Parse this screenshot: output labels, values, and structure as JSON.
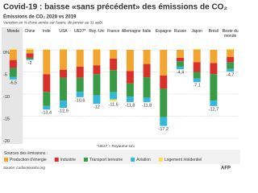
{
  "chart_data": {
    "type": "bar",
    "title": "Covid-19 : baisse «sans précédent» des émissions de CO₂",
    "subtitle": "Émissions de CO₂ 2020 vs 2019",
    "note": "Variation en % d'une année sur l'autre, de janvier au 31 août",
    "footnote": "*UE27 + Royaume-Uni",
    "legend_title": "Sources des émissions :",
    "source": "Source: carbonmonitor.org",
    "logo": "AFP",
    "stacked": true,
    "grid": true,
    "categories": [
      "Monde",
      "Chine",
      "Inde",
      "USA",
      "UE27*",
      "Roy.-Uni",
      "France",
      "Allemagne",
      "Italie",
      "Espagne",
      "Russie",
      "Japon",
      "Brésil",
      "Reste du monde"
    ],
    "series": [
      {
        "name": "Production d'énergie",
        "color": "#f3a531",
        "values": [
          -2.3,
          -0.8,
          -5.5,
          -4.5,
          -3.8,
          -3.5,
          -2.0,
          -4.8,
          -3.2,
          -5.8,
          -1.8,
          -2.8,
          -3.0,
          -1.6
        ]
      },
      {
        "name": "Industrie",
        "color": "#d8312b",
        "values": [
          -1.8,
          -1.0,
          -4.0,
          -1.8,
          -2.5,
          -2.0,
          -2.6,
          -2.8,
          -3.0,
          -3.0,
          -0.8,
          -2.2,
          -2.5,
          -1.2
        ]
      },
      {
        "name": "Transport terrestre",
        "color": "#3a9b47",
        "values": [
          -2.0,
          -0.3,
          -3.2,
          -5.2,
          -3.2,
          -4.8,
          -5.0,
          -3.0,
          -4.6,
          -6.4,
          -1.2,
          -1.5,
          -6.0,
          -1.5
        ]
      },
      {
        "name": "Aviation",
        "color": "#35b6dc",
        "values": [
          -0.6,
          -0.2,
          -0.8,
          -1.6,
          -1.2,
          -1.9,
          -1.6,
          -1.2,
          -1.0,
          -2.0,
          -0.6,
          -0.8,
          -1.2,
          -0.6
        ]
      },
      {
        "name": "Logement résidentiel",
        "color": "#f1e34c",
        "values": [
          0.2,
          0.3,
          0.1,
          0.2,
          0.1,
          0.2,
          -0.4,
          0,
          0,
          0,
          0,
          0.2,
          0,
          0.2
        ]
      }
    ],
    "totals": {
      "values": [
        -6.5,
        -2,
        -13.4,
        -12.9,
        -10.6,
        -12,
        -11.6,
        -11.8,
        -11.8,
        -17.2,
        -4.4,
        -7.1,
        -12.7,
        -4.7
      ],
      "value_labels": [
        "-6,5",
        "-2",
        "-13,4",
        "-12,9",
        "-10,6",
        "-12",
        "-11,6",
        "-11,8",
        "-11,8",
        "-17,2",
        "-4,4",
        "-7,1",
        "-12,7",
        "-4,7"
      ]
    },
    "ylim": [
      -20,
      2
    ],
    "yticks": [
      {
        "value": 0,
        "label": "0%"
      },
      -5,
      -10,
      -15,
      -20
    ]
  }
}
